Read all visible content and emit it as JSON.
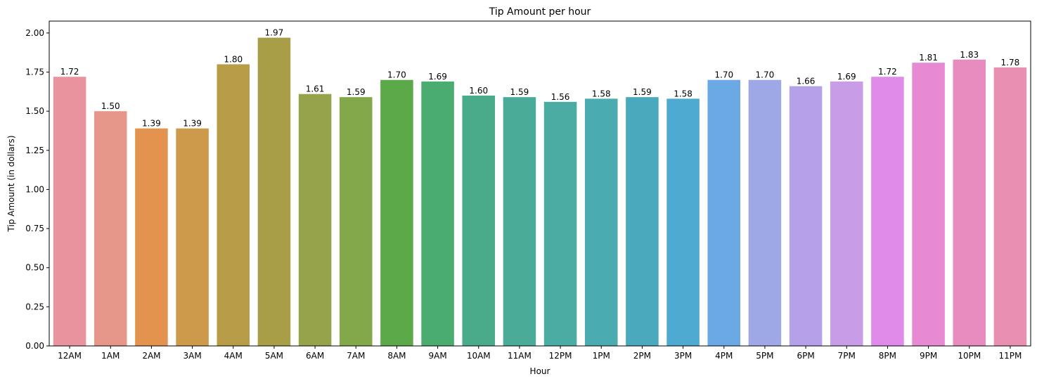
{
  "chart_data": {
    "type": "bar",
    "title": "Tip Amount per hour",
    "xlabel": "Hour",
    "ylabel": "Tip Amount (in dollars)",
    "categories": [
      "12AM",
      "1AM",
      "2AM",
      "3AM",
      "4AM",
      "5AM",
      "6AM",
      "7AM",
      "8AM",
      "9AM",
      "10AM",
      "11AM",
      "12PM",
      "1PM",
      "2PM",
      "3PM",
      "4PM",
      "5PM",
      "6PM",
      "7PM",
      "8PM",
      "9PM",
      "10PM",
      "11PM"
    ],
    "values": [
      1.72,
      1.5,
      1.39,
      1.39,
      1.8,
      1.97,
      1.61,
      1.59,
      1.7,
      1.69,
      1.6,
      1.59,
      1.56,
      1.58,
      1.59,
      1.58,
      1.7,
      1.7,
      1.66,
      1.69,
      1.72,
      1.81,
      1.83,
      1.78
    ],
    "data_labels": [
      "1.72",
      "1.50",
      "1.39",
      "1.39",
      "1.80",
      "1.97",
      "1.61",
      "1.59",
      "1.70",
      "1.69",
      "1.60",
      "1.59",
      "1.56",
      "1.58",
      "1.59",
      "1.58",
      "1.70",
      "1.70",
      "1.66",
      "1.69",
      "1.72",
      "1.81",
      "1.83",
      "1.78"
    ],
    "colors": [
      "#e9939e",
      "#e7968a",
      "#e3934d",
      "#cc9a4a",
      "#b89c48",
      "#a89e48",
      "#97a34a",
      "#82a849",
      "#5ca949",
      "#4aad6f",
      "#4aab8b",
      "#4aab98",
      "#4aaca3",
      "#4aabb1",
      "#4aa9bd",
      "#4eaad0",
      "#6aa9e3",
      "#9ea8e6",
      "#b4a1e9",
      "#c99ce7",
      "#e08aea",
      "#e78ad3",
      "#e88cc0",
      "#e990b2"
    ],
    "ylim": [
      0,
      2.076
    ],
    "yticks": [
      "0.00",
      "0.25",
      "0.50",
      "0.75",
      "1.00",
      "1.25",
      "1.50",
      "1.75",
      "2.00"
    ],
    "grid": false,
    "legend": "none"
  }
}
